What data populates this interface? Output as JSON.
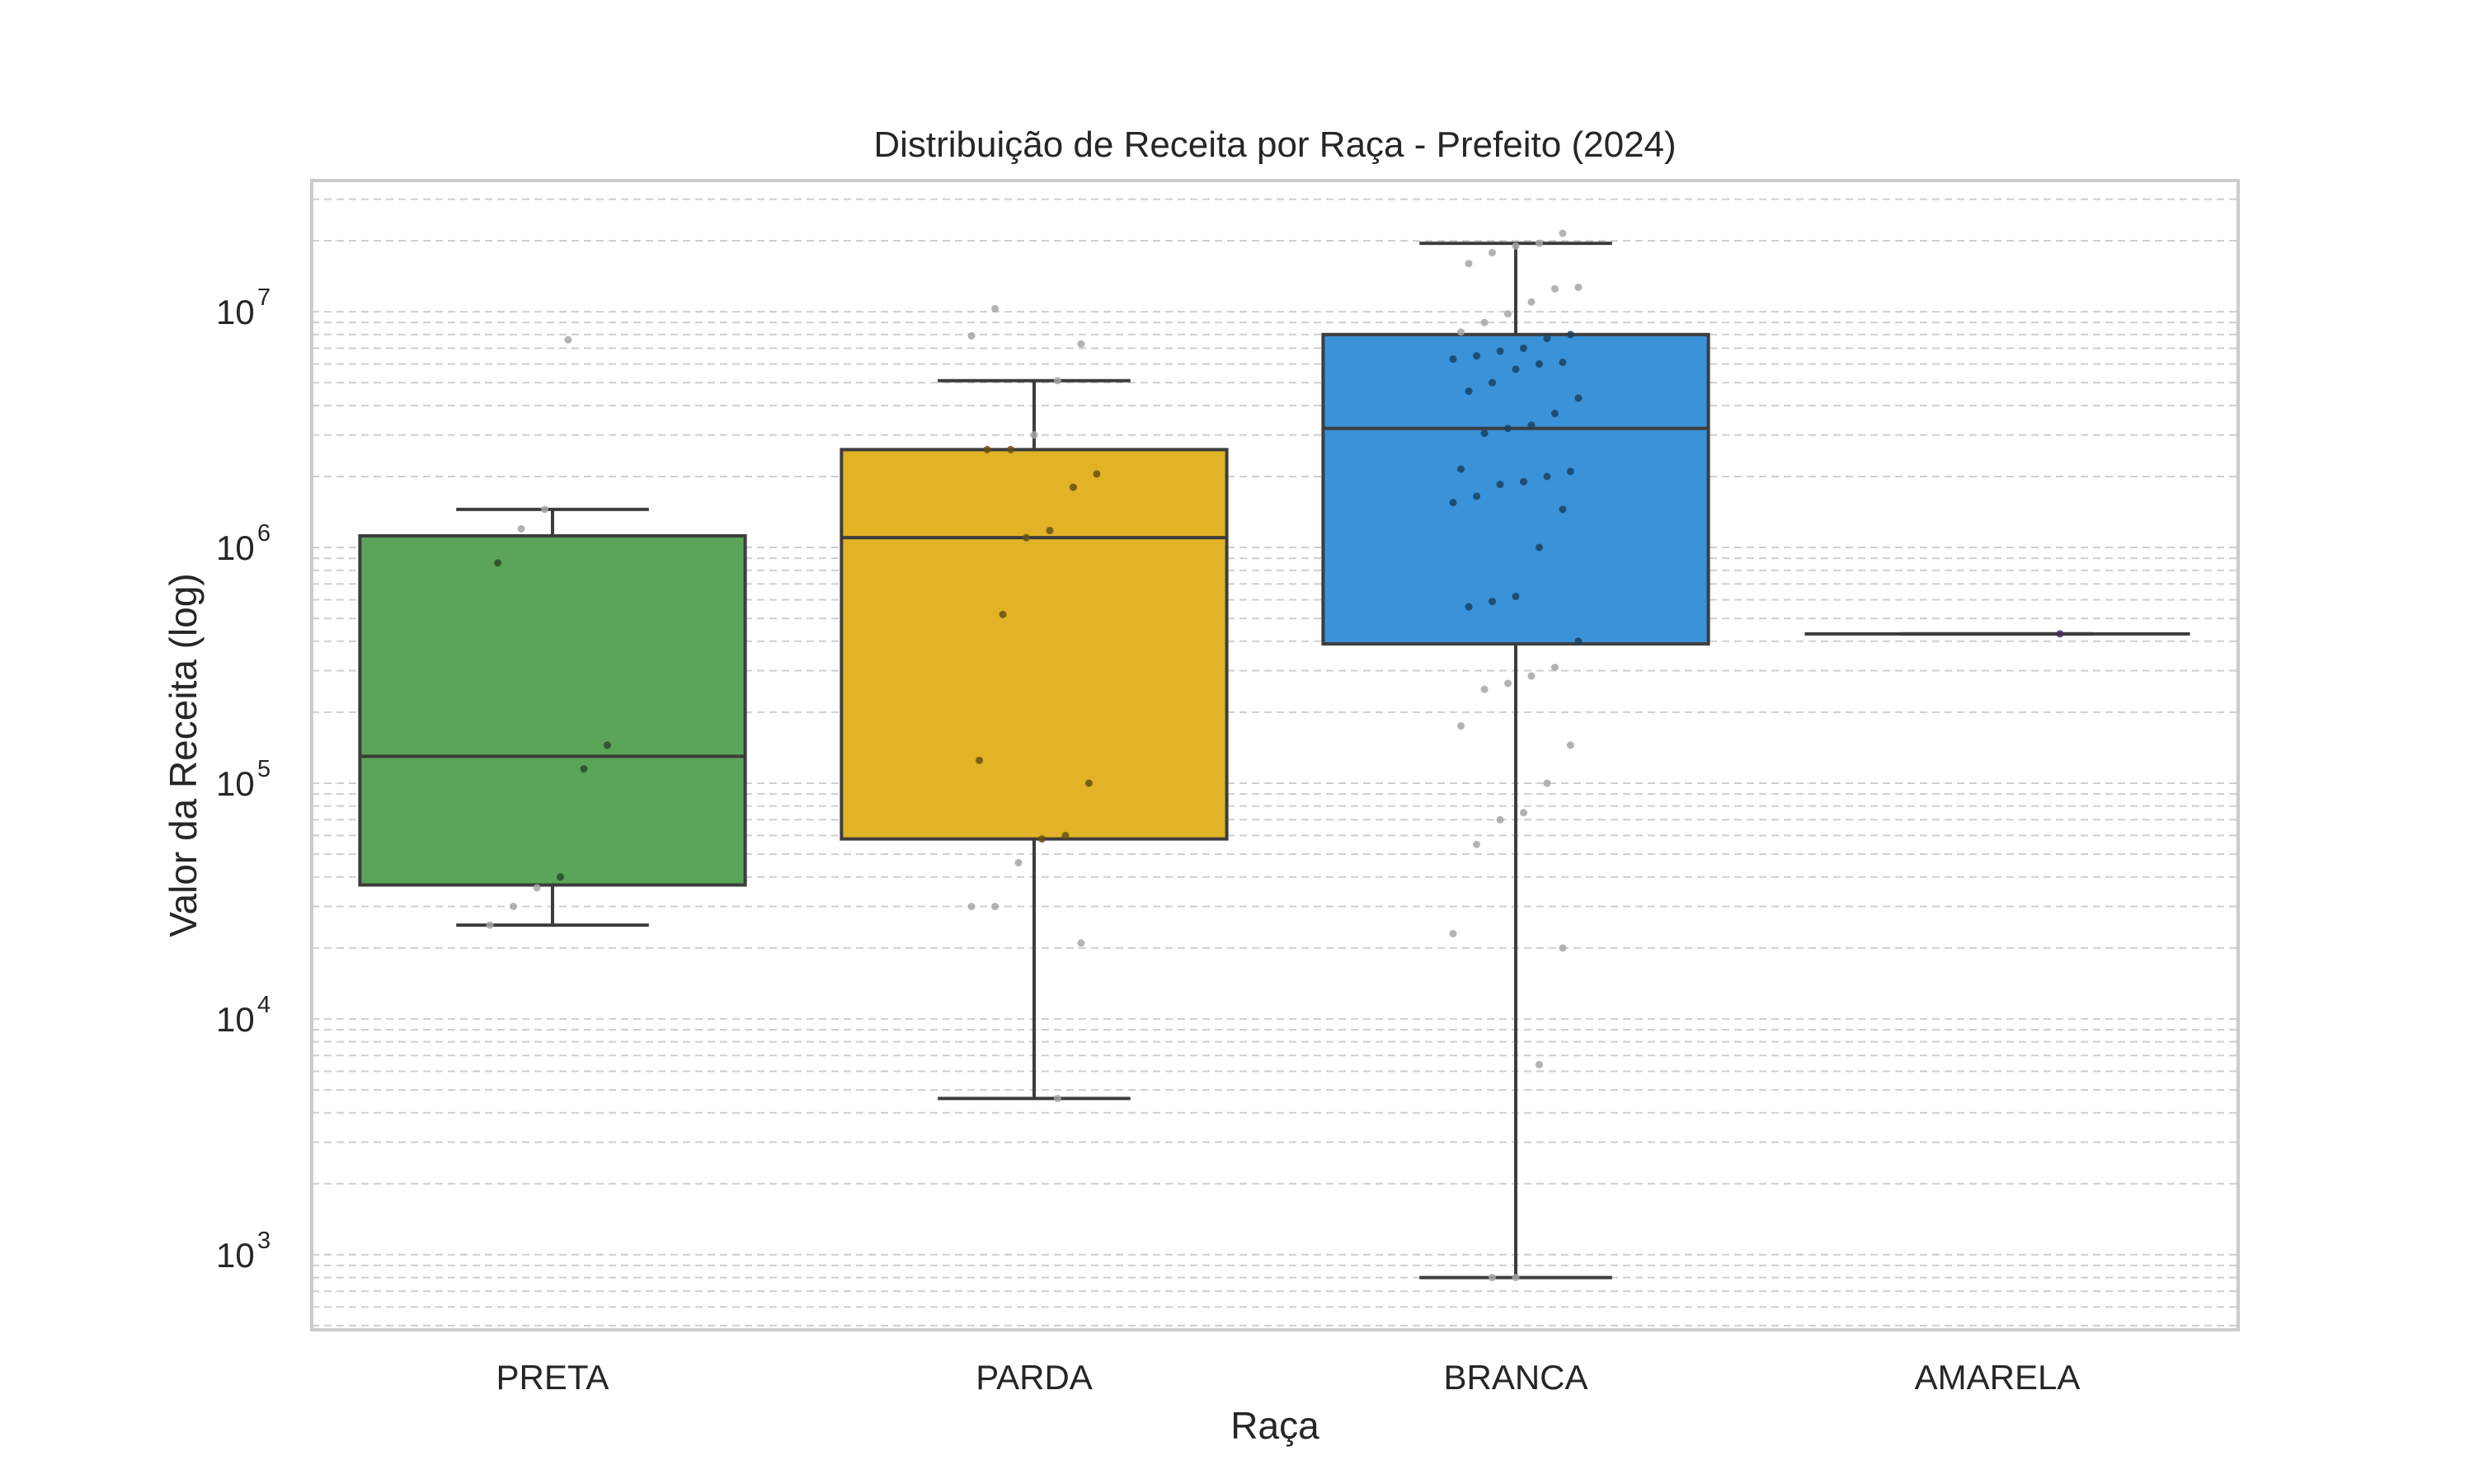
{
  "chart_data": {
    "type": "box",
    "title": "Distribuição de Receita por Raça - Prefeito (2024)",
    "xlabel": "Raça",
    "ylabel": "Valor da Receita (log)",
    "yscale": "log",
    "ylim": [
      480,
      36000000
    ],
    "yticks": [
      {
        "base": "10",
        "exp": "3",
        "value": 1000
      },
      {
        "base": "10",
        "exp": "4",
        "value": 10000
      },
      {
        "base": "10",
        "exp": "5",
        "value": 100000
      },
      {
        "base": "10",
        "exp": "6",
        "value": 1000000
      },
      {
        "base": "10",
        "exp": "7",
        "value": 10000000
      }
    ],
    "grid": true,
    "categories": [
      {
        "name": "PRETA",
        "color": "#5aa55a",
        "whisker_low": 25000,
        "q1": 37000,
        "median": 130000,
        "q3": 1120000,
        "whisker_high": 1450000,
        "points": [
          25000,
          30000,
          36000,
          40000,
          115000,
          145000,
          860000,
          1200000,
          1450000,
          7600000
        ]
      },
      {
        "name": "PARDA",
        "color": "#e2b326",
        "whisker_low": 4600,
        "q1": 58000,
        "median": 1100000,
        "q3": 2600000,
        "whisker_high": 5100000,
        "points": [
          4600,
          21000,
          30000,
          30000,
          46000,
          58000,
          60000,
          100000,
          125000,
          520000,
          1100000,
          1180000,
          1800000,
          2050000,
          2600000,
          2600000,
          3000000,
          5100000,
          7300000,
          7900000,
          10300000
        ]
      },
      {
        "name": "BRANCA",
        "color": "#3a92d9",
        "whisker_low": 800,
        "q1": 390000,
        "median": 3200000,
        "q3": 8000000,
        "whisker_high": 19500000,
        "points": [
          800,
          800,
          6400,
          20000,
          23000,
          55000,
          70000,
          75000,
          100000,
          145000,
          175000,
          250000,
          265000,
          285000,
          310000,
          400000,
          560000,
          590000,
          620000,
          1000000,
          1450000,
          1550000,
          1650000,
          1850000,
          1900000,
          2000000,
          2100000,
          2150000,
          3050000,
          3200000,
          3300000,
          3700000,
          4300000,
          4600000,
          5000000,
          5700000,
          6000000,
          6100000,
          6300000,
          6500000,
          6800000,
          7000000,
          7700000,
          8000000,
          8200000,
          9000000,
          9800000,
          11000000,
          12500000,
          12700000,
          16000000,
          17800000,
          19000000,
          19500000,
          21500000
        ]
      },
      {
        "name": "AMARELA",
        "color": "#9a5fc7",
        "whisker_low": 430000,
        "q1": 430000,
        "median": 430000,
        "q3": 430000,
        "whisker_high": 430000,
        "points": [
          430000
        ]
      }
    ]
  }
}
